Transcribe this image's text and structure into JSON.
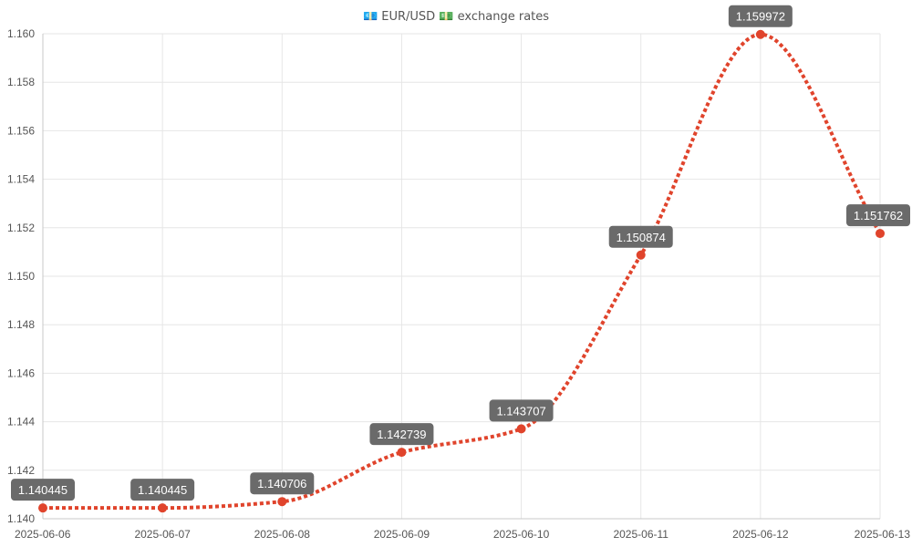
{
  "colors": {
    "series": "#e0442c",
    "label_bg": "#6a6a6a",
    "grid": "#e6e6e6"
  },
  "chart_data": {
    "type": "line",
    "title": "💶 EUR/USD 💵 exchange rates",
    "title_icons": [
      "euro-banknote-icon",
      "dollar-banknote-icon"
    ],
    "xlabel": "",
    "ylabel": "",
    "categories": [
      "2025-06-06",
      "2025-06-07",
      "2025-06-08",
      "2025-06-09",
      "2025-06-10",
      "2025-06-11",
      "2025-06-12",
      "2025-06-13"
    ],
    "series": [
      {
        "values": [
          1.140445,
          1.140445,
          1.140706,
          1.142739,
          1.143707,
          1.150874,
          1.159972,
          1.151762
        ],
        "data_labels": [
          "1.140445",
          "1.140445",
          "1.140706",
          "1.142739",
          "1.143707",
          "1.150874",
          "1.159972",
          "1.151762"
        ]
      }
    ],
    "ylim": [
      1.14,
      1.16
    ],
    "yticks": [
      "1.140",
      "1.142",
      "1.144",
      "1.146",
      "1.148",
      "1.150",
      "1.152",
      "1.154",
      "1.156",
      "1.158",
      "1.160"
    ],
    "grid": true,
    "legend": "none",
    "line_style": "dotted-smooth"
  }
}
